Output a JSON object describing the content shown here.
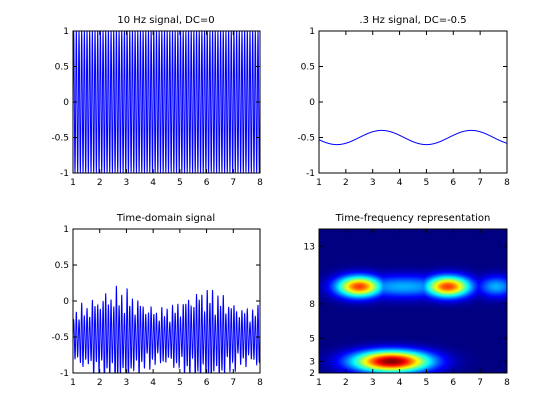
{
  "chart_data": [
    {
      "type": "line",
      "title": "10 Hz signal, DC=0",
      "xlim": [
        1,
        8
      ],
      "ylim": [
        -1,
        1
      ],
      "xticks": [
        "1",
        "2",
        "3",
        "4",
        "5",
        "6",
        "7",
        "8"
      ],
      "yticks": [
        "-1",
        "-0.5",
        "0",
        "0.5",
        "1"
      ],
      "series": [
        {
          "color": "#0000ff",
          "frequency_hz": 10,
          "dc": 0,
          "amplitude": 1,
          "phase_cycles": 0
        }
      ]
    },
    {
      "type": "line",
      "title": ".3 Hz signal, DC=-0.5",
      "xlim": [
        1,
        8
      ],
      "ylim": [
        -1,
        1
      ],
      "xticks": [
        "1",
        "2",
        "3",
        "4",
        "5",
        "6",
        "7",
        "8"
      ],
      "yticks": [
        "-1",
        "-0.5",
        "0",
        "0.5",
        "1"
      ],
      "series": [
        {
          "color": "#0000ff",
          "frequency_hz": 0.3,
          "dc": -0.5,
          "amplitude": 0.1,
          "phase_cycles": 0
        }
      ]
    },
    {
      "type": "line",
      "title": "Time-domain signal",
      "xlim": [
        1,
        8
      ],
      "ylim": [
        -1,
        1
      ],
      "xticks": [
        "1",
        "2",
        "3",
        "4",
        "5",
        "6",
        "7",
        "8"
      ],
      "yticks": [
        "-1",
        "-0.5",
        "0",
        "0.5",
        "1"
      ],
      "series": [
        {
          "color": "#0000ff",
          "frequency_hz": 10,
          "dc": -0.5,
          "amplitude": 0.42,
          "envelope_hz": 0.3
        }
      ]
    },
    {
      "type": "heatmap",
      "title": "Time-frequency representation",
      "xlim": [
        1,
        8
      ],
      "ylim": [
        2,
        14.5
      ],
      "xticks": [
        "1",
        "2",
        "3",
        "4",
        "5",
        "6",
        "7",
        "8"
      ],
      "yticks": [
        "2",
        "3",
        "5",
        "8",
        "13"
      ],
      "colormap": "jet",
      "blobs": [
        {
          "x": 3.7,
          "y": 3,
          "sx": 1.0,
          "sy": 0.65,
          "value": 1.0
        },
        {
          "x": 2.5,
          "y": 9.5,
          "sx": 0.6,
          "sy": 0.65,
          "value": 0.82
        },
        {
          "x": 5.8,
          "y": 9.5,
          "sx": 0.6,
          "sy": 0.65,
          "value": 0.82
        },
        {
          "x": 4.15,
          "y": 9.5,
          "sx": 1.4,
          "sy": 0.7,
          "value": 0.3
        },
        {
          "x": 7.6,
          "y": 9.5,
          "sx": 0.5,
          "sy": 0.65,
          "value": 0.3
        }
      ]
    }
  ]
}
